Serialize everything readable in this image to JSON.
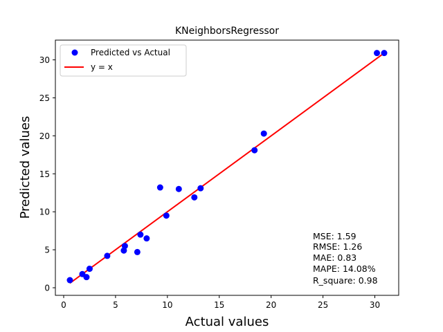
{
  "chart_data": {
    "type": "scatter",
    "title": "KNeighborsRegressor",
    "xlabel": "Actual values",
    "ylabel": "Predicted values",
    "xlim": [
      -0.8,
      32.3
    ],
    "ylim": [
      -1.0,
      32.6
    ],
    "xticks": [
      0,
      5,
      10,
      15,
      20,
      25,
      30
    ],
    "yticks": [
      0,
      5,
      10,
      15,
      20,
      25,
      30
    ],
    "grid": false,
    "legend_position": "top-left",
    "series": [
      {
        "name": "Predicted vs Actual",
        "kind": "scatter",
        "color": "#0000ff",
        "points": [
          [
            0.6,
            1.0
          ],
          [
            1.8,
            1.8
          ],
          [
            2.2,
            1.4
          ],
          [
            2.5,
            2.5
          ],
          [
            4.2,
            4.2
          ],
          [
            5.8,
            4.9
          ],
          [
            5.9,
            5.5
          ],
          [
            7.1,
            4.7
          ],
          [
            7.4,
            7.0
          ],
          [
            8.0,
            6.5
          ],
          [
            9.3,
            13.2
          ],
          [
            9.9,
            9.5
          ],
          [
            11.1,
            13.0
          ],
          [
            12.6,
            11.9
          ],
          [
            13.2,
            13.1
          ],
          [
            18.4,
            18.1
          ],
          [
            19.3,
            20.3
          ],
          [
            30.2,
            30.9
          ],
          [
            30.9,
            30.9
          ]
        ]
      },
      {
        "name": "y = x",
        "kind": "line",
        "color": "#ff0000",
        "points": [
          [
            0.6,
            0.6
          ],
          [
            30.9,
            30.9
          ]
        ]
      }
    ],
    "metrics": [
      "MSE: 1.59",
      "RMSE: 1.26",
      "MAE: 0.83",
      "MAPE: 14.08%",
      "R_square: 0.98"
    ]
  }
}
